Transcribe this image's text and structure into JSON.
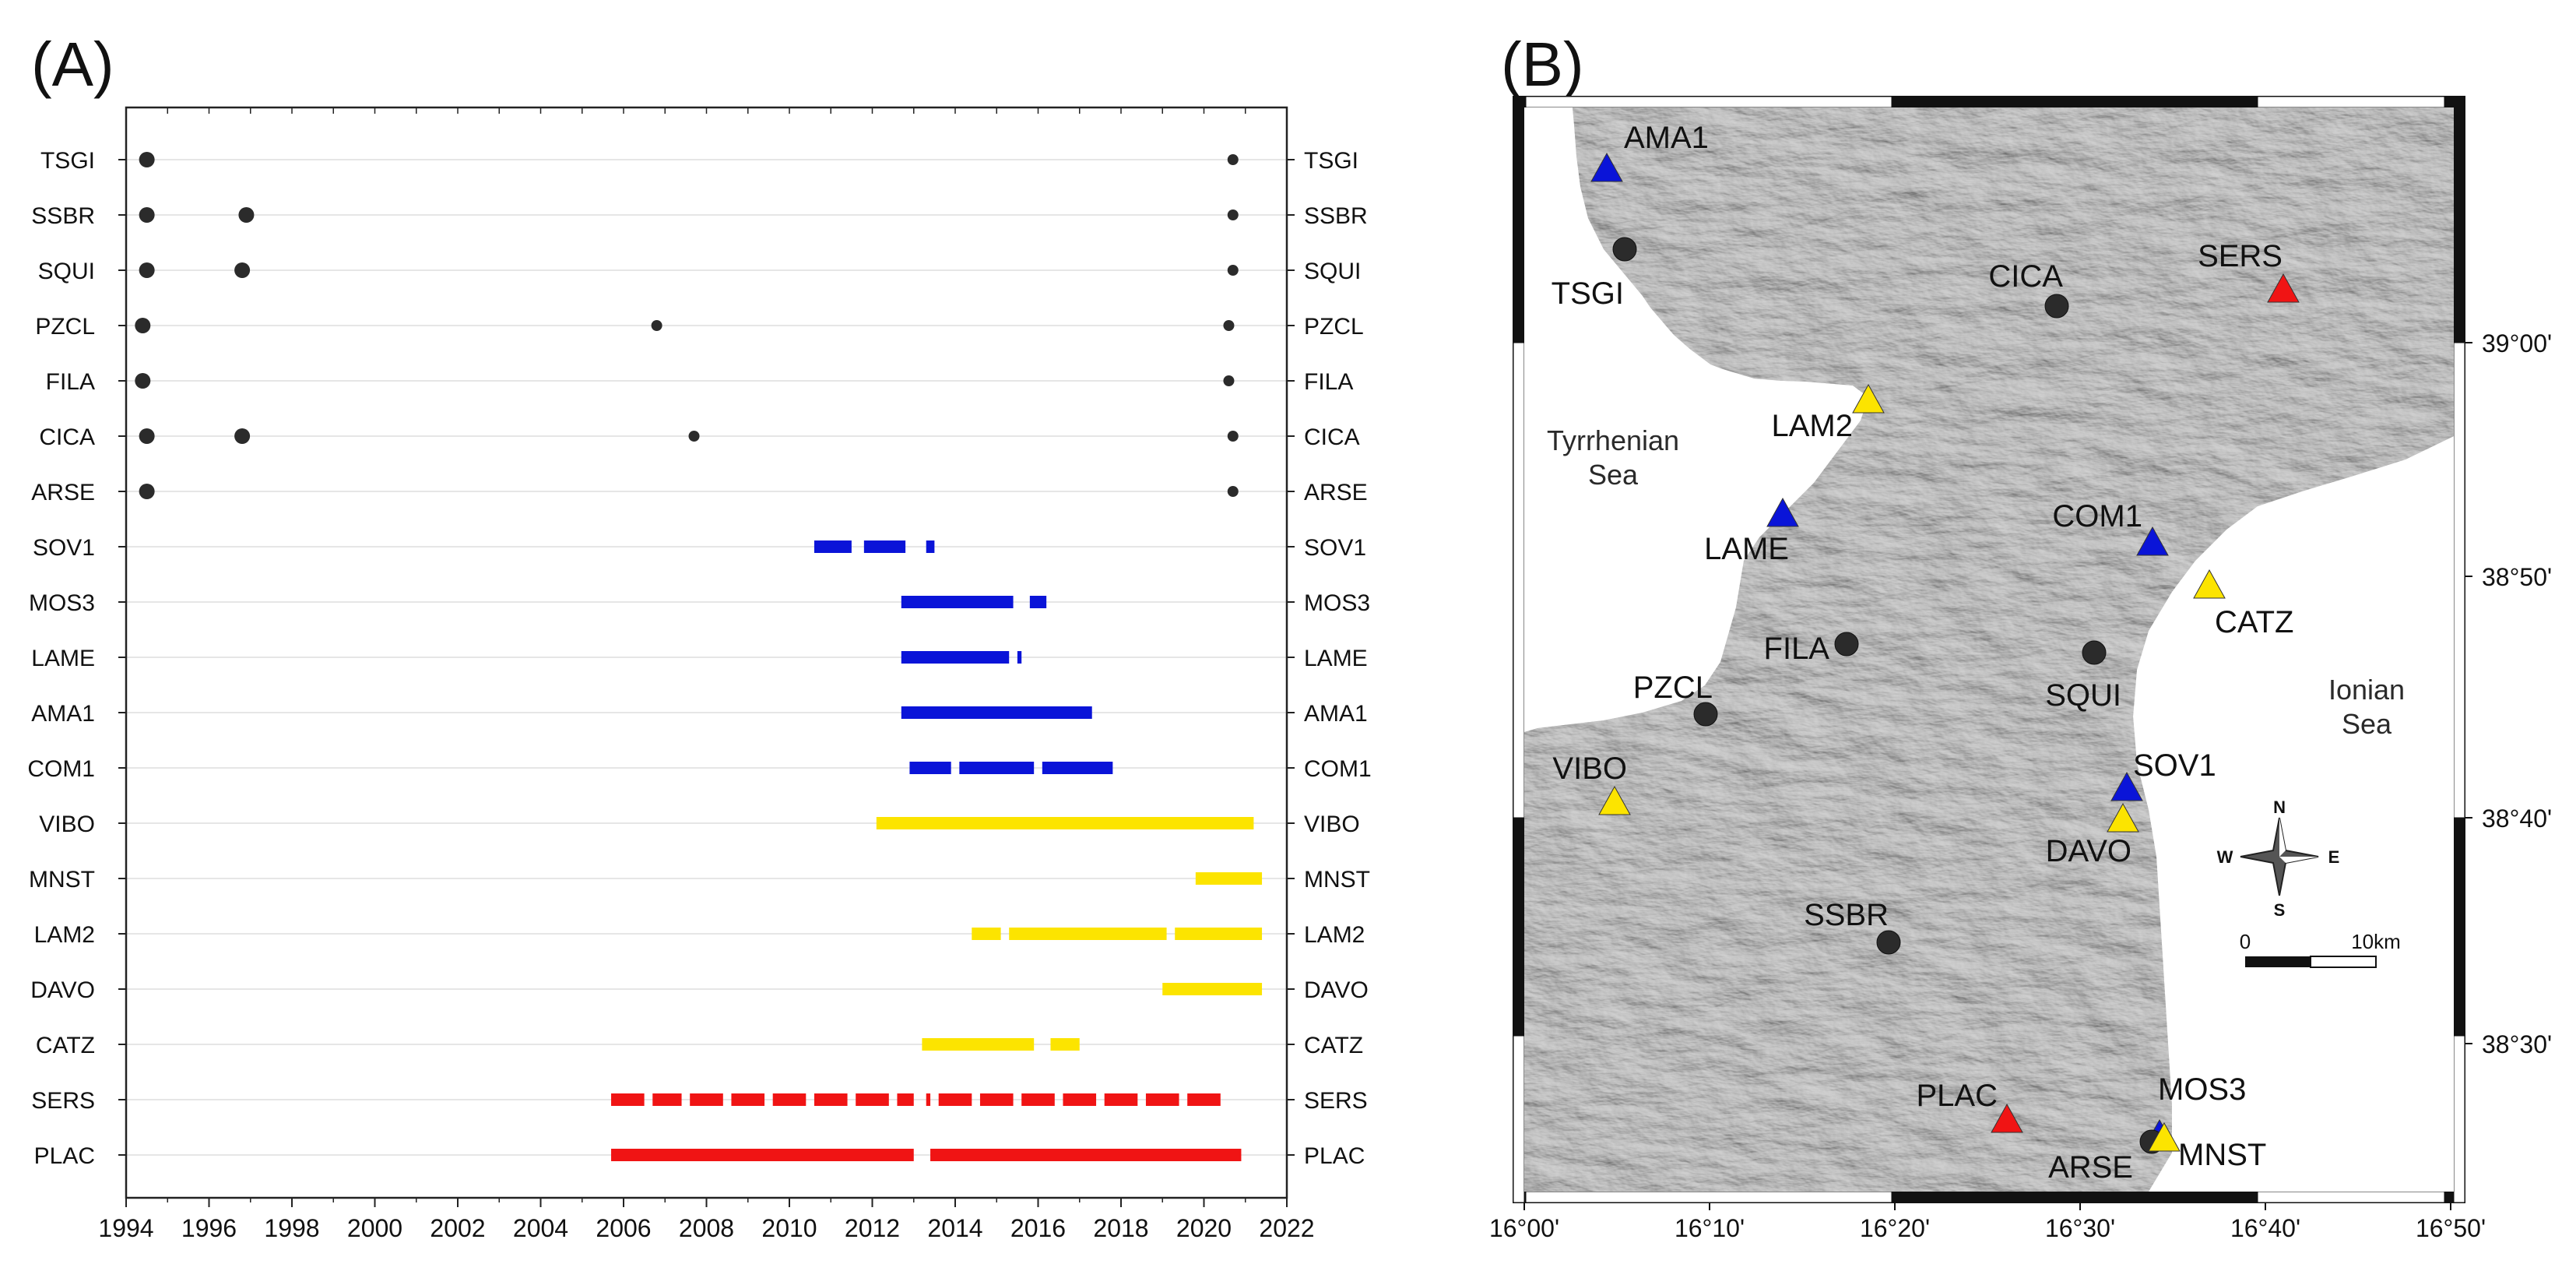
{
  "colors": {
    "black": "#2b2b2b",
    "blue": "#0a14d8",
    "yellow": "#fce400",
    "red": "#f01414",
    "grid": "#e6e6e6",
    "land": "#bdbdbd",
    "sea": "#ffffff"
  },
  "chart_data": {
    "type": "timeline",
    "panel_label": "(A)",
    "xlim": [
      1994,
      2022
    ],
    "xticks": [
      "1994",
      "1996",
      "1998",
      "2000",
      "2002",
      "2004",
      "2006",
      "2008",
      "2010",
      "2012",
      "2014",
      "2016",
      "2018",
      "2020",
      "2022"
    ],
    "xtick_values": [
      1994,
      1996,
      1998,
      2000,
      2002,
      2004,
      2006,
      2008,
      2010,
      2012,
      2014,
      2016,
      2018,
      2020,
      2022
    ],
    "stations": [
      {
        "name": "TSGI",
        "color": "black",
        "points": [
          {
            "t": 1994.5,
            "size": "large"
          },
          {
            "t": 2020.7,
            "size": "small"
          }
        ],
        "segments": []
      },
      {
        "name": "SSBR",
        "color": "black",
        "points": [
          {
            "t": 1994.5,
            "size": "large"
          },
          {
            "t": 1996.9,
            "size": "large"
          },
          {
            "t": 2020.7,
            "size": "small"
          }
        ],
        "segments": []
      },
      {
        "name": "SQUI",
        "color": "black",
        "points": [
          {
            "t": 1994.5,
            "size": "large"
          },
          {
            "t": 1996.8,
            "size": "large"
          },
          {
            "t": 2020.7,
            "size": "small"
          }
        ],
        "segments": []
      },
      {
        "name": "PZCL",
        "color": "black",
        "points": [
          {
            "t": 1994.4,
            "size": "large"
          },
          {
            "t": 2006.8,
            "size": "small"
          },
          {
            "t": 2020.6,
            "size": "small"
          }
        ],
        "segments": []
      },
      {
        "name": "FILA",
        "color": "black",
        "points": [
          {
            "t": 1994.4,
            "size": "large"
          },
          {
            "t": 2020.6,
            "size": "small"
          }
        ],
        "segments": []
      },
      {
        "name": "CICA",
        "color": "black",
        "points": [
          {
            "t": 1994.5,
            "size": "large"
          },
          {
            "t": 1996.8,
            "size": "large"
          },
          {
            "t": 2007.7,
            "size": "small"
          },
          {
            "t": 2020.7,
            "size": "small"
          }
        ],
        "segments": []
      },
      {
        "name": "ARSE",
        "color": "black",
        "points": [
          {
            "t": 1994.5,
            "size": "large"
          },
          {
            "t": 2020.7,
            "size": "small"
          }
        ],
        "segments": []
      },
      {
        "name": "SOV1",
        "color": "blue",
        "points": [],
        "segments": [
          [
            2010.6,
            2011.5
          ],
          [
            2011.8,
            2012.8
          ],
          [
            2013.3,
            2013.5
          ]
        ]
      },
      {
        "name": "MOS3",
        "color": "blue",
        "points": [],
        "segments": [
          [
            2012.7,
            2015.4
          ],
          [
            2015.8,
            2016.2
          ]
        ]
      },
      {
        "name": "LAME",
        "color": "blue",
        "points": [],
        "segments": [
          [
            2012.7,
            2015.3
          ],
          [
            2015.5,
            2015.6
          ]
        ]
      },
      {
        "name": "AMA1",
        "color": "blue",
        "points": [],
        "segments": [
          [
            2012.7,
            2017.3
          ]
        ]
      },
      {
        "name": "COM1",
        "color": "blue",
        "points": [],
        "segments": [
          [
            2012.9,
            2013.9
          ],
          [
            2014.1,
            2015.9
          ],
          [
            2016.1,
            2017.8
          ]
        ]
      },
      {
        "name": "VIBO",
        "color": "yellow",
        "points": [],
        "segments": [
          [
            2012.1,
            2021.2
          ]
        ]
      },
      {
        "name": "MNST",
        "color": "yellow",
        "points": [],
        "segments": [
          [
            2019.8,
            2021.4
          ]
        ]
      },
      {
        "name": "LAM2",
        "color": "yellow",
        "points": [],
        "segments": [
          [
            2014.4,
            2015.1
          ],
          [
            2015.3,
            2019.1
          ],
          [
            2019.3,
            2021.4
          ]
        ]
      },
      {
        "name": "DAVO",
        "color": "yellow",
        "points": [],
        "segments": [
          [
            2019.0,
            2021.4
          ]
        ]
      },
      {
        "name": "CATZ",
        "color": "yellow",
        "points": [],
        "segments": [
          [
            2013.2,
            2015.9
          ],
          [
            2016.3,
            2017.0
          ]
        ]
      },
      {
        "name": "SERS",
        "color": "red",
        "points": [],
        "segments": [
          [
            2005.7,
            2006.5
          ],
          [
            2006.7,
            2007.4
          ],
          [
            2007.6,
            2008.4
          ],
          [
            2008.6,
            2009.4
          ],
          [
            2009.6,
            2010.4
          ],
          [
            2010.6,
            2011.4
          ],
          [
            2011.6,
            2012.4
          ],
          [
            2012.6,
            2013.0
          ],
          [
            2013.3,
            2013.4
          ],
          [
            2013.6,
            2014.4
          ],
          [
            2014.6,
            2015.4
          ],
          [
            2015.6,
            2016.4
          ],
          [
            2016.6,
            2017.4
          ],
          [
            2017.6,
            2018.4
          ],
          [
            2018.6,
            2019.4
          ],
          [
            2019.6,
            2020.4
          ]
        ]
      },
      {
        "name": "PLAC",
        "color": "red",
        "points": [],
        "segments": [
          [
            2005.7,
            2013.0
          ],
          [
            2013.4,
            2020.9
          ]
        ]
      }
    ]
  },
  "map": {
    "panel_label": "(B)",
    "lon_ticks": [
      "16°00'",
      "16°10'",
      "16°20'",
      "16°30'",
      "16°40'",
      "16°50'"
    ],
    "lat_ticks": [
      "39°00'",
      "38°50'",
      "38°40'",
      "38°30'"
    ],
    "sea_labels": {
      "tyrrhenian": [
        "Tyrrhenian",
        "Sea"
      ],
      "ionian": [
        "Ionian",
        "Sea"
      ]
    },
    "stations": [
      {
        "name": "AMA1",
        "marker": "triangle",
        "color": "blue"
      },
      {
        "name": "TSGI",
        "marker": "circle",
        "color": "black"
      },
      {
        "name": "CICA",
        "marker": "circle",
        "color": "black"
      },
      {
        "name": "SERS",
        "marker": "triangle",
        "color": "red"
      },
      {
        "name": "LAM2",
        "marker": "triangle",
        "color": "yellow"
      },
      {
        "name": "LAME",
        "marker": "triangle",
        "color": "blue"
      },
      {
        "name": "COM1",
        "marker": "triangle",
        "color": "blue"
      },
      {
        "name": "CATZ",
        "marker": "triangle",
        "color": "yellow"
      },
      {
        "name": "FILA",
        "marker": "circle",
        "color": "black"
      },
      {
        "name": "SQUI",
        "marker": "circle",
        "color": "black"
      },
      {
        "name": "PZCL",
        "marker": "circle",
        "color": "black"
      },
      {
        "name": "VIBO",
        "marker": "triangle",
        "color": "yellow"
      },
      {
        "name": "SOV1",
        "marker": "triangle",
        "color": "blue"
      },
      {
        "name": "DAVO",
        "marker": "triangle",
        "color": "yellow"
      },
      {
        "name": "SSBR",
        "marker": "circle",
        "color": "black"
      },
      {
        "name": "PLAC",
        "marker": "triangle",
        "color": "red"
      },
      {
        "name": "MOS3",
        "marker": "triangle",
        "color": "blue"
      },
      {
        "name": "ARSE",
        "marker": "circle",
        "color": "black"
      },
      {
        "name": "MNST",
        "marker": "triangle",
        "color": "yellow"
      }
    ],
    "compass": {
      "n": "N",
      "s": "S",
      "e": "E",
      "w": "W"
    },
    "scale_bar": {
      "start_label": "0",
      "end_label": "10km"
    }
  }
}
